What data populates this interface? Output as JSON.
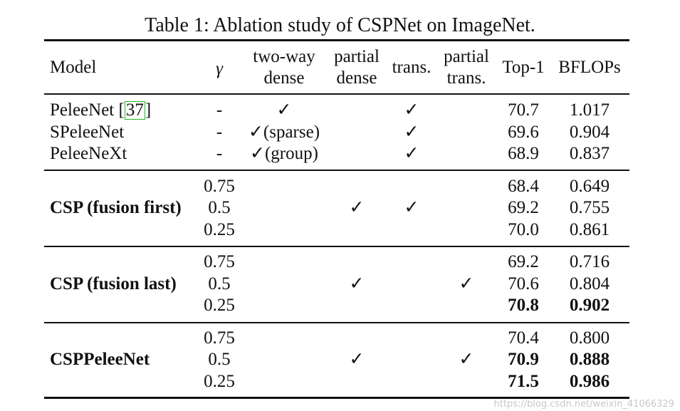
{
  "caption": "Table 1: Ablation study of CSPNet on ImageNet.",
  "headers": {
    "model": "Model",
    "gamma": "γ",
    "two_way_dense_1": "two-way",
    "two_way_dense_2": "dense",
    "partial_dense_1": "partial",
    "partial_dense_2": "dense",
    "trans": "trans.",
    "partial_trans_1": "partial",
    "partial_trans_2": "trans.",
    "top1": "Top-1",
    "bflops": "BFLOPs"
  },
  "group1": {
    "rows": [
      {
        "model": "PeleeNet ",
        "cite": "37",
        "close": "]",
        "open": "[",
        "gamma": "-",
        "two_way": "✓",
        "trans": "✓",
        "top1": "70.7",
        "bflops": "1.017"
      },
      {
        "model": "SPeleeNet",
        "gamma": "-",
        "two_way": "✓(sparse)",
        "trans": "✓",
        "top1": "69.6",
        "bflops": "0.904"
      },
      {
        "model": "PeleeNeXt",
        "gamma": "-",
        "two_way": "✓(group)",
        "trans": "✓",
        "top1": "68.9",
        "bflops": "0.837"
      }
    ]
  },
  "group2": {
    "model": "CSP (fusion first)",
    "partial_dense": "✓",
    "trans": "✓",
    "rows": [
      {
        "gamma": "0.75",
        "top1": "68.4",
        "bflops": "0.649"
      },
      {
        "gamma": "0.5",
        "top1": "69.2",
        "bflops": "0.755"
      },
      {
        "gamma": "0.25",
        "top1": "70.0",
        "bflops": "0.861"
      }
    ]
  },
  "group3": {
    "model": "CSP (fusion last)",
    "partial_dense": "✓",
    "partial_trans": "✓",
    "rows": [
      {
        "gamma": "0.75",
        "top1": "69.2",
        "bflops": "0.716"
      },
      {
        "gamma": "0.5",
        "top1": "70.6",
        "bflops": "0.804"
      },
      {
        "gamma": "0.25",
        "top1": "70.8",
        "bflops": "0.902"
      }
    ]
  },
  "group4": {
    "model": "CSPPeleeNet",
    "partial_dense": "✓",
    "partial_trans": "✓",
    "rows": [
      {
        "gamma": "0.75",
        "top1": "70.4",
        "bflops": "0.800"
      },
      {
        "gamma": "0.5",
        "top1": "70.9",
        "bflops": "0.888"
      },
      {
        "gamma": "0.25",
        "top1": "71.5",
        "bflops": "0.986"
      }
    ]
  },
  "watermark": "https://blog.csdn.net/weixin_41066329"
}
